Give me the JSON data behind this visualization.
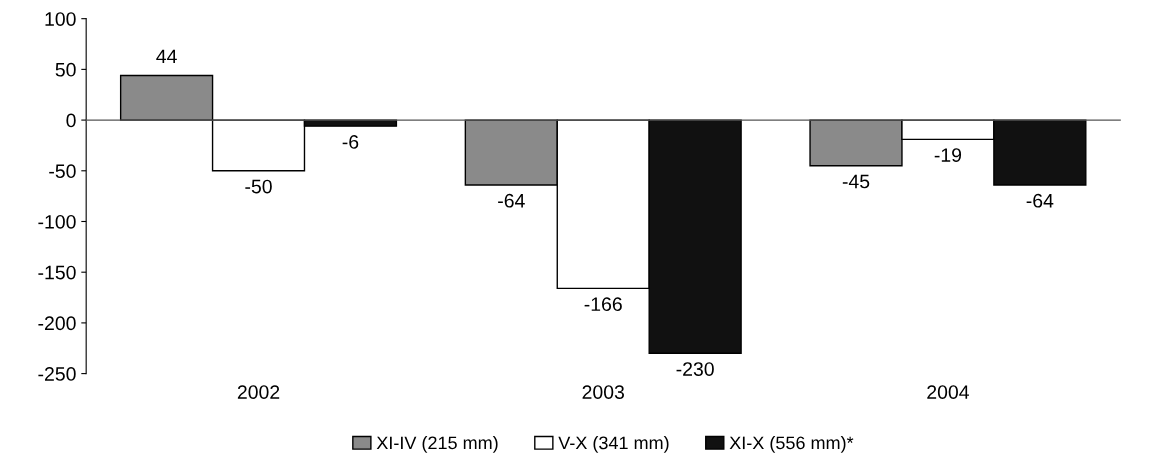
{
  "chart_data": {
    "type": "bar",
    "categories": [
      "2002",
      "2003",
      "2004"
    ],
    "series": [
      {
        "name": "XI-IV (215 mm)",
        "color": "#8a8a8a",
        "values": [
          44,
          -64,
          -45
        ]
      },
      {
        "name": "V-X (341 mm)",
        "color": "#ffffff",
        "values": [
          -50,
          -166,
          -19
        ]
      },
      {
        "name": "XI-X (556 mm)*",
        "color": "#111111",
        "values": [
          -6,
          -230,
          -64
        ]
      }
    ],
    "ylim": [
      -250,
      100
    ],
    "yticks": [
      -250,
      -200,
      -150,
      -100,
      -50,
      0,
      50,
      100
    ],
    "data_labels": true,
    "legend": "bottom"
  }
}
